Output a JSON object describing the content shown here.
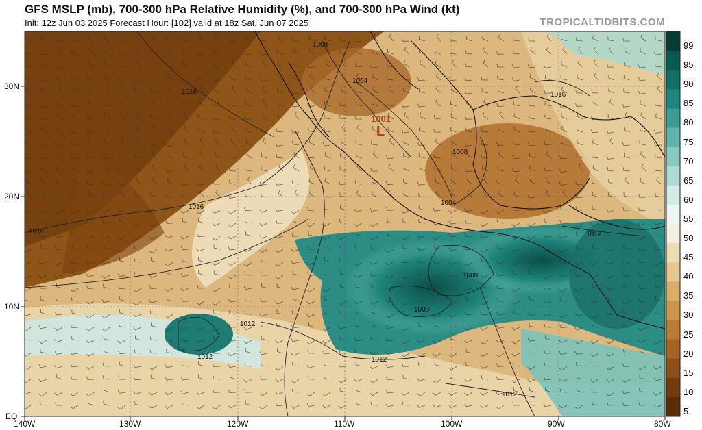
{
  "header": {
    "title": "GFS MSLP (mb), 700-300 hPa Relative Humidity (%), and 700-300 hPa Wind (kt)",
    "subtitle": "Init: 12z Jun 03 2025   Forecast Hour: [102]   valid at 18z Sat, Jun 07 2025",
    "brand": "TROPICALTIDBITS.COM"
  },
  "axes": {
    "lat_labels": [
      "30N",
      "20N",
      "10N",
      "EQ"
    ],
    "lon_labels": [
      "140W",
      "130W",
      "120W",
      "110W",
      "100W",
      "90W",
      "80W"
    ]
  },
  "colorbar": {
    "labels": [
      "99",
      "95",
      "90",
      "85",
      "80",
      "75",
      "70",
      "65",
      "60",
      "55",
      "50",
      "45",
      "40",
      "35",
      "30",
      "25",
      "20",
      "15",
      "10",
      "5"
    ],
    "colors": [
      "#053d36",
      "#0b5a52",
      "#137068",
      "#1e867e",
      "#3a9c94",
      "#5fb3ab",
      "#88c8c1",
      "#aedcd5",
      "#d2ece8",
      "#eef6f4",
      "#f3efe2",
      "#ecdcb6",
      "#e4c68f",
      "#d9ae6b",
      "#cb954d",
      "#b97b35",
      "#a56424",
      "#8c4f17",
      "#733c0f",
      "#5a2c08"
    ]
  },
  "isobars": [
    {
      "label": "1016"
    },
    {
      "label": "1016"
    },
    {
      "label": "1016"
    },
    {
      "label": "1008"
    },
    {
      "label": "1004"
    },
    {
      "label": "1016"
    },
    {
      "label": "1008"
    },
    {
      "label": "1004"
    },
    {
      "label": "1012"
    },
    {
      "label": "1008"
    },
    {
      "label": "1008"
    },
    {
      "label": "1012"
    },
    {
      "label": "1012"
    },
    {
      "label": "1012"
    },
    {
      "label": "1012"
    }
  ],
  "low": {
    "label": "1001",
    "symbol": "L"
  }
}
